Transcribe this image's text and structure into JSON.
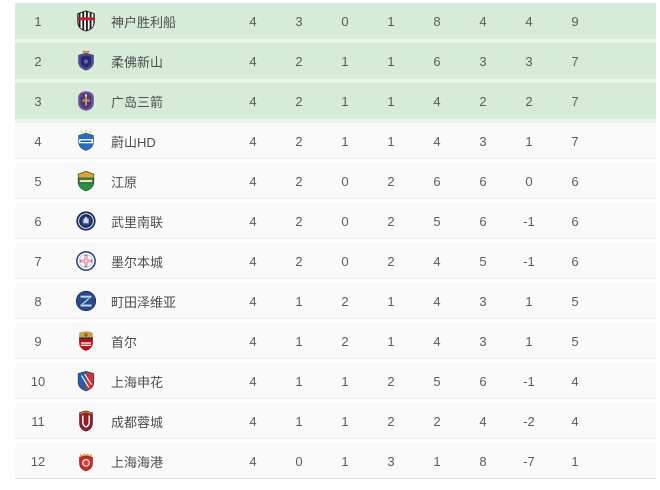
{
  "colors": {
    "highlight_bg": "#d6ecd8",
    "highlight_gap": "#e9f4ea",
    "row_bg": "#fafafa",
    "row_gap": "#ffffff",
    "divider": "#ececec",
    "rank_text": "#5c5c5c",
    "name_text": "#4d4d4d",
    "stat_text": "#5c5c5c"
  },
  "table": {
    "stat_keys": [
      "played",
      "wins",
      "draws",
      "losses",
      "goals_for",
      "goals_against",
      "goal_diff",
      "points"
    ],
    "rows": [
      {
        "position": "1",
        "team": "神户胜利船",
        "logo": "vissel-kobe",
        "highlight": true,
        "stats": [
          "4",
          "3",
          "0",
          "1",
          "8",
          "4",
          "4",
          "9"
        ]
      },
      {
        "position": "2",
        "team": "柔佛新山",
        "logo": "johor",
        "highlight": true,
        "stats": [
          "4",
          "2",
          "1",
          "1",
          "6",
          "3",
          "3",
          "7"
        ]
      },
      {
        "position": "3",
        "team": "广岛三箭",
        "logo": "hiroshima",
        "highlight": true,
        "stats": [
          "4",
          "2",
          "1",
          "1",
          "4",
          "2",
          "2",
          "7"
        ]
      },
      {
        "position": "4",
        "team": "蔚山HD",
        "logo": "ulsan",
        "highlight": false,
        "stats": [
          "4",
          "2",
          "1",
          "1",
          "4",
          "3",
          "1",
          "7"
        ]
      },
      {
        "position": "5",
        "team": "江原",
        "logo": "gangwon",
        "highlight": false,
        "stats": [
          "4",
          "2",
          "0",
          "2",
          "6",
          "6",
          "0",
          "6"
        ]
      },
      {
        "position": "6",
        "team": "武里南联",
        "logo": "buriram",
        "highlight": false,
        "stats": [
          "4",
          "2",
          "0",
          "2",
          "5",
          "6",
          "-1",
          "6"
        ]
      },
      {
        "position": "7",
        "team": "墨尔本城",
        "logo": "melbourne-city",
        "highlight": false,
        "stats": [
          "4",
          "2",
          "0",
          "2",
          "4",
          "5",
          "-1",
          "6"
        ]
      },
      {
        "position": "8",
        "team": "町田泽维亚",
        "logo": "machida-zelvia",
        "highlight": false,
        "stats": [
          "4",
          "1",
          "2",
          "1",
          "4",
          "3",
          "1",
          "5"
        ]
      },
      {
        "position": "9",
        "team": "首尔",
        "logo": "seoul",
        "highlight": false,
        "stats": [
          "4",
          "1",
          "2",
          "1",
          "4",
          "3",
          "1",
          "5"
        ]
      },
      {
        "position": "10",
        "team": "上海申花",
        "logo": "shenhua",
        "highlight": false,
        "stats": [
          "4",
          "1",
          "1",
          "2",
          "5",
          "6",
          "-1",
          "4"
        ]
      },
      {
        "position": "11",
        "team": "成都蓉城",
        "logo": "chengdu",
        "highlight": false,
        "stats": [
          "4",
          "1",
          "1",
          "2",
          "2",
          "4",
          "-2",
          "4"
        ]
      },
      {
        "position": "12",
        "team": "上海海港",
        "logo": "shanghai-port",
        "highlight": false,
        "stats": [
          "4",
          "0",
          "1",
          "3",
          "1",
          "8",
          "-7",
          "1"
        ]
      }
    ]
  }
}
